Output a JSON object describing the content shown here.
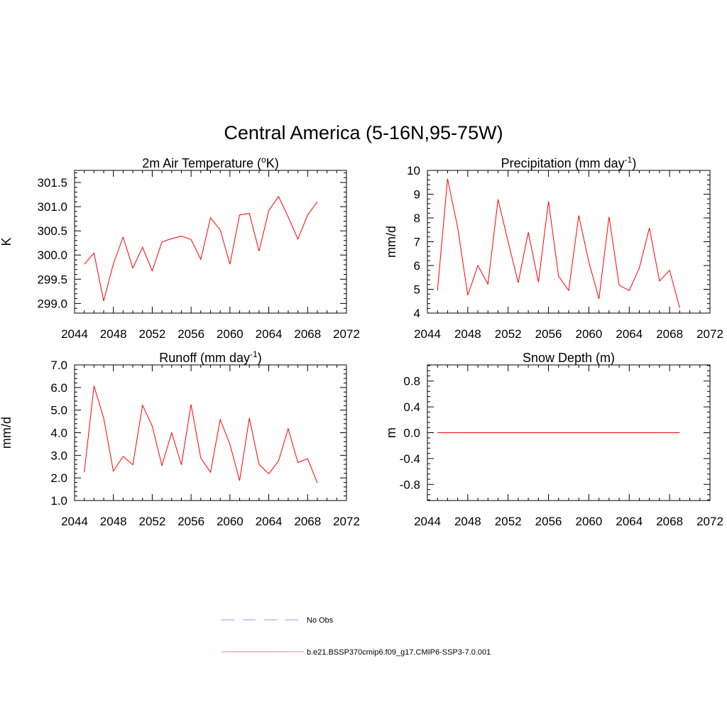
{
  "figure": {
    "title": "Central America (5-16N,95-75W)"
  },
  "colors": {
    "model": "#ff0000",
    "model_legend": "#ff9a9a",
    "obs_legend": "#a9a9ff"
  },
  "legend": {
    "entries": [
      {
        "label": "No Obs",
        "style": "dashed",
        "color": "#a9a9ff"
      },
      {
        "label": "b.e21.BSSP370cmip6.f09_g17.CMIP6-SSP3-7.0.001",
        "style": "solid",
        "color": "#ff9a9a"
      }
    ]
  },
  "chart_data": [
    {
      "type": "line",
      "title": "2m Air Temperature (",
      "title_sup": "o",
      "title_suffix": "K)",
      "ylabel": "K",
      "xlim": [
        2044,
        2072
      ],
      "ylim": [
        298.8,
        301.75
      ],
      "xticks": [
        2044,
        2048,
        2052,
        2056,
        2060,
        2064,
        2068,
        2072
      ],
      "yticks": [
        299.0,
        299.5,
        300.0,
        300.5,
        301.0,
        301.5
      ],
      "ytick_labels": [
        "299.0",
        "299.5",
        "300.0",
        "300.5",
        "301.0",
        "301.5"
      ],
      "x": [
        2045,
        2046,
        2047,
        2048,
        2049,
        2050,
        2051,
        2052,
        2053,
        2054,
        2055,
        2056,
        2057,
        2058,
        2059,
        2060,
        2061,
        2062,
        2063,
        2064,
        2065,
        2066,
        2067,
        2068,
        2069
      ],
      "series": [
        {
          "values": [
            299.81,
            300.04,
            299.05,
            299.82,
            300.37,
            299.73,
            300.16,
            299.67,
            300.27,
            300.34,
            300.39,
            300.32,
            299.91,
            300.77,
            300.52,
            299.81,
            300.83,
            300.86,
            300.08,
            300.92,
            301.21,
            300.79,
            300.33,
            300.83,
            301.1
          ]
        }
      ]
    },
    {
      "type": "line",
      "title": "Precipitation (mm day",
      "title_sup": "-1",
      "title_suffix": ")",
      "ylabel": "mm/d",
      "xlim": [
        2044,
        2072
      ],
      "ylim": [
        4,
        10
      ],
      "xticks": [
        2044,
        2048,
        2052,
        2056,
        2060,
        2064,
        2068,
        2072
      ],
      "yticks": [
        4,
        5,
        6,
        7,
        8,
        9,
        10
      ],
      "ytick_labels": [
        "4",
        "5",
        "6",
        "7",
        "8",
        "9",
        "10"
      ],
      "x": [
        2045,
        2046,
        2047,
        2048,
        2049,
        2050,
        2051,
        2052,
        2053,
        2054,
        2055,
        2056,
        2057,
        2058,
        2059,
        2060,
        2061,
        2062,
        2063,
        2064,
        2065,
        2066,
        2067,
        2068,
        2069
      ],
      "series": [
        {
          "values": [
            4.95,
            9.65,
            7.6,
            4.75,
            6.0,
            5.22,
            8.78,
            7.0,
            5.28,
            7.4,
            5.3,
            8.7,
            5.55,
            4.95,
            8.1,
            6.15,
            4.6,
            8.05,
            5.17,
            4.95,
            5.9,
            7.58,
            5.35,
            5.8,
            4.22
          ]
        }
      ]
    },
    {
      "type": "line",
      "title": "Runoff (mm day",
      "title_sup": "-1",
      "title_suffix": ")",
      "ylabel": "mm/d",
      "xlim": [
        2044,
        2072
      ],
      "ylim": [
        1,
        7
      ],
      "xticks": [
        2044,
        2048,
        2052,
        2056,
        2060,
        2064,
        2068,
        2072
      ],
      "yticks": [
        1,
        2,
        3,
        4,
        5,
        6,
        7
      ],
      "ytick_labels": [
        "1.0",
        "2.0",
        "3.0",
        "4.0",
        "5.0",
        "6.0",
        "7.0"
      ],
      "x": [
        2045,
        2046,
        2047,
        2048,
        2049,
        2050,
        2051,
        2052,
        2053,
        2054,
        2055,
        2056,
        2057,
        2058,
        2059,
        2060,
        2061,
        2062,
        2063,
        2064,
        2065,
        2066,
        2067,
        2068,
        2069
      ],
      "series": [
        {
          "values": [
            2.25,
            6.07,
            4.65,
            2.3,
            2.95,
            2.58,
            5.22,
            4.3,
            2.55,
            4.0,
            2.58,
            5.25,
            2.88,
            2.25,
            4.58,
            3.48,
            1.88,
            4.65,
            2.6,
            2.18,
            2.75,
            4.18,
            2.68,
            2.85,
            1.78
          ]
        }
      ]
    },
    {
      "type": "line",
      "title": "Snow Depth (m)",
      "title_sup": "",
      "title_suffix": "",
      "ylabel": "m",
      "xlim": [
        2044,
        2072
      ],
      "ylim": [
        -1.05,
        1.05
      ],
      "xticks": [
        2044,
        2048,
        2052,
        2056,
        2060,
        2064,
        2068,
        2072
      ],
      "yticks": [
        -0.8,
        -0.4,
        0.0,
        0.4,
        0.8
      ],
      "ytick_labels": [
        "-0.8",
        "-0.4",
        "0.0",
        "0.4",
        "0.8"
      ],
      "x": [
        2045,
        2069
      ],
      "series": [
        {
          "values": [
            0.0,
            0.0
          ]
        }
      ]
    }
  ]
}
